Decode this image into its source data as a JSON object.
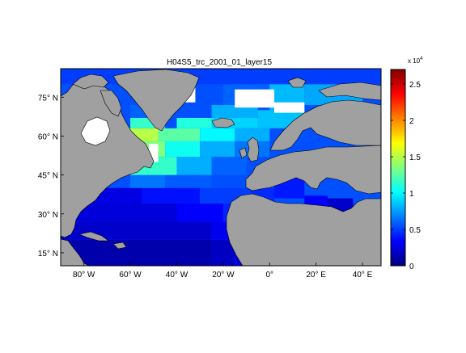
{
  "chart_data": {
    "type": "heatmap",
    "title": "H04S5_trc_2001_01_layer15",
    "xlabel": "",
    "ylabel": "",
    "x_range": [
      -90,
      48
    ],
    "y_range": [
      10,
      86
    ],
    "x_ticks": [
      {
        "value": -80,
        "label": "80° W"
      },
      {
        "value": -60,
        "label": "60° W"
      },
      {
        "value": -40,
        "label": "40° W"
      },
      {
        "value": -20,
        "label": "20° W"
      },
      {
        "value": 0,
        "label": "0°"
      },
      {
        "value": 20,
        "label": "20° E"
      },
      {
        "value": 40,
        "label": "40° E"
      }
    ],
    "y_ticks": [
      {
        "value": 15,
        "label": "15° N"
      },
      {
        "value": 30,
        "label": "30° N"
      },
      {
        "value": 45,
        "label": "45° N"
      },
      {
        "value": 60,
        "label": "60° N"
      },
      {
        "value": 75,
        "label": "75° N"
      }
    ],
    "colorbar": {
      "range": [
        0,
        27000
      ],
      "scale_label": "x 10",
      "scale_exponent": "4",
      "ticks": [
        {
          "value": 0,
          "label": "0"
        },
        {
          "value": 5000,
          "label": "0.5"
        },
        {
          "value": 10000,
          "label": "1"
        },
        {
          "value": 15000,
          "label": "1.5"
        },
        {
          "value": 20000,
          "label": "2"
        },
        {
          "value": 25000,
          "label": "2.5"
        }
      ]
    },
    "colormap": "jet",
    "land_color": "#a0a0a0",
    "missing_color": "#ffffff",
    "field_regions": [
      {
        "lon": [
          -90,
          48
        ],
        "lat": [
          10,
          86
        ],
        "value": 5500
      },
      {
        "lon": [
          -90,
          -25
        ],
        "lat": [
          10,
          20
        ],
        "value": 1200
      },
      {
        "lon": [
          -25,
          -15
        ],
        "lat": [
          10,
          20
        ],
        "value": 1800
      },
      {
        "lon": [
          -15,
          0
        ],
        "lat": [
          10,
          20
        ],
        "value": 2600
      },
      {
        "lon": [
          -90,
          -25
        ],
        "lat": [
          20,
          27
        ],
        "value": 2000
      },
      {
        "lon": [
          -25,
          -10
        ],
        "lat": [
          20,
          27
        ],
        "value": 3000
      },
      {
        "lon": [
          -90,
          -40
        ],
        "lat": [
          27,
          34
        ],
        "value": 2400
      },
      {
        "lon": [
          -40,
          -20
        ],
        "lat": [
          27,
          34
        ],
        "value": 3300
      },
      {
        "lon": [
          -20,
          -8
        ],
        "lat": [
          27,
          34
        ],
        "value": 4300
      },
      {
        "lon": [
          -90,
          -55
        ],
        "lat": [
          34,
          40
        ],
        "value": 2600
      },
      {
        "lon": [
          -55,
          -30
        ],
        "lat": [
          34,
          40
        ],
        "value": 3800
      },
      {
        "lon": [
          -30,
          -8
        ],
        "lat": [
          34,
          40
        ],
        "value": 5000
      },
      {
        "lon": [
          -60,
          -45
        ],
        "lat": [
          40,
          45
        ],
        "value": 6500
      },
      {
        "lon": [
          -45,
          -25
        ],
        "lat": [
          40,
          45
        ],
        "value": 5800
      },
      {
        "lon": [
          -25,
          -8
        ],
        "lat": [
          40,
          45
        ],
        "value": 5500
      },
      {
        "lon": [
          -60,
          -40
        ],
        "lat": [
          45,
          52
        ],
        "value": 11500
      },
      {
        "lon": [
          -40,
          -25
        ],
        "lat": [
          45,
          52
        ],
        "value": 8000
      },
      {
        "lon": [
          -25,
          -10
        ],
        "lat": [
          45,
          52
        ],
        "value": 6000
      },
      {
        "lon": [
          -60,
          -45
        ],
        "lat": [
          52,
          58
        ],
        "value": 13500
      },
      {
        "lon": [
          -45,
          -30
        ],
        "lat": [
          52,
          58
        ],
        "value": 10500
      },
      {
        "lon": [
          -30,
          -15
        ],
        "lat": [
          52,
          58
        ],
        "value": 8000
      },
      {
        "lon": [
          -15,
          0
        ],
        "lat": [
          52,
          58
        ],
        "value": 6500
      },
      {
        "lon": [
          -65,
          -48
        ],
        "lat": [
          58,
          63
        ],
        "value": 15000
      },
      {
        "lon": [
          -48,
          -30
        ],
        "lat": [
          58,
          63
        ],
        "value": 12500
      },
      {
        "lon": [
          -30,
          -15
        ],
        "lat": [
          58,
          63
        ],
        "value": 10000
      },
      {
        "lon": [
          -15,
          0
        ],
        "lat": [
          58,
          63
        ],
        "value": 8000
      },
      {
        "lon": [
          -60,
          -45
        ],
        "lat": [
          63,
          67
        ],
        "value": 11500
      },
      {
        "lon": [
          -40,
          -25
        ],
        "lat": [
          63,
          67
        ],
        "value": 11000
      },
      {
        "lon": [
          -25,
          -5
        ],
        "lat": [
          63,
          67
        ],
        "value": 9000
      },
      {
        "lon": [
          -5,
          15
        ],
        "lat": [
          63,
          70
        ],
        "value": 8500
      },
      {
        "lon": [
          -25,
          -5
        ],
        "lat": [
          67,
          72
        ],
        "value": 8000
      },
      {
        "lon": [
          -60,
          -45
        ],
        "lat": [
          67,
          72
        ],
        "value": 6000
      },
      {
        "lon": [
          -60,
          -40
        ],
        "lat": [
          72,
          80
        ],
        "value": 5500
      },
      {
        "lon": [
          -20,
          0
        ],
        "lat": [
          72,
          80
        ],
        "value": 6000
      },
      {
        "lon": [
          0,
          15
        ],
        "lat": [
          70,
          80
        ],
        "value": 8300
      },
      {
        "lon": [
          15,
          40
        ],
        "lat": [
          72,
          80
        ],
        "value": 7800
      },
      {
        "lon": [
          -90,
          48
        ],
        "lat": [
          80,
          86
        ],
        "value": 5000
      },
      {
        "lon": [
          -8,
          2
        ],
        "lat": [
          35,
          40
        ],
        "value": 4500
      },
      {
        "lon": [
          2,
          15
        ],
        "lat": [
          36,
          44
        ],
        "value": 4000
      },
      {
        "lon": [
          15,
          25
        ],
        "lat": [
          31,
          37
        ],
        "value": 3300
      },
      {
        "lon": [
          25,
          36
        ],
        "lat": [
          31,
          36
        ],
        "value": 2000
      }
    ],
    "missing_regions": [
      {
        "lon": [
          -52,
          -48
        ],
        "lat": [
          50,
          57
        ]
      },
      {
        "lon": [
          -48,
          -32
        ],
        "lat": [
          73,
          80
        ]
      },
      {
        "lon": [
          -15,
          2
        ],
        "lat": [
          71,
          78
        ]
      },
      {
        "lon": [
          2,
          15
        ],
        "lat": [
          69,
          73
        ]
      },
      {
        "lon": [
          -58,
          -48
        ],
        "lat": [
          81,
          84
        ]
      }
    ]
  }
}
